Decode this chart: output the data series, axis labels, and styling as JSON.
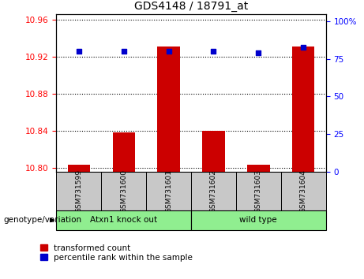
{
  "title": "GDS4148 / 18791_at",
  "samples": [
    "GSM731599",
    "GSM731600",
    "GSM731601",
    "GSM731602",
    "GSM731603",
    "GSM731604"
  ],
  "red_values": [
    10.803,
    10.838,
    10.931,
    10.84,
    10.803,
    10.931
  ],
  "blue_values": [
    80,
    80,
    80,
    80,
    79,
    83
  ],
  "ylim_left": [
    10.796,
    10.966
  ],
  "ylim_right": [
    0,
    105
  ],
  "yticks_left": [
    10.8,
    10.84,
    10.88,
    10.92,
    10.96
  ],
  "yticks_right": [
    0,
    25,
    50,
    75,
    100
  ],
  "ytick_right_labels": [
    "0",
    "25",
    "50",
    "75",
    "100%"
  ],
  "group1_label": "Atxn1 knock out",
  "group2_label": "wild type",
  "group1_indices": [
    0,
    1,
    2
  ],
  "group2_indices": [
    3,
    4,
    5
  ],
  "group_color": "#90EE90",
  "sample_bg_color": "#C8C8C8",
  "bar_color": "#CC0000",
  "dot_color": "#0000CC",
  "legend_red_label": "transformed count",
  "legend_blue_label": "percentile rank within the sample",
  "genotype_label": "genotype/variation",
  "bar_bottom": 10.796
}
